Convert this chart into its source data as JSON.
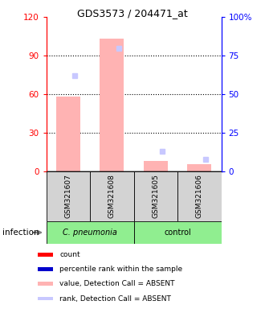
{
  "title": "GDS3573 / 204471_at",
  "samples": [
    "GSM321607",
    "GSM321608",
    "GSM321605",
    "GSM321606"
  ],
  "bar_color_absent": "#ffb3b3",
  "rank_color_absent": "#c8c8ff",
  "ylim_left": [
    0,
    120
  ],
  "ylim_right": [
    0,
    100
  ],
  "yticks_left": [
    0,
    30,
    60,
    90,
    120
  ],
  "yticks_right": [
    0,
    25,
    50,
    75,
    100
  ],
  "ytick_labels_right": [
    "0",
    "25",
    "50",
    "75",
    "100%"
  ],
  "values": [
    58,
    103,
    8,
    6
  ],
  "detection_calls": [
    "ABSENT",
    "ABSENT",
    "ABSENT",
    "ABSENT"
  ],
  "percentile_ranks": [
    62,
    80,
    13,
    8
  ],
  "sample_box_color": "#d3d3d3",
  "cpneumonia_color": "#90ee90",
  "control_color": "#90ee90",
  "legend_items": [
    {
      "label": "count",
      "color": "#ff0000"
    },
    {
      "label": "percentile rank within the sample",
      "color": "#0000cc"
    },
    {
      "label": "value, Detection Call = ABSENT",
      "color": "#ffb3b3"
    },
    {
      "label": "rank, Detection Call = ABSENT",
      "color": "#c8c8ff"
    }
  ]
}
